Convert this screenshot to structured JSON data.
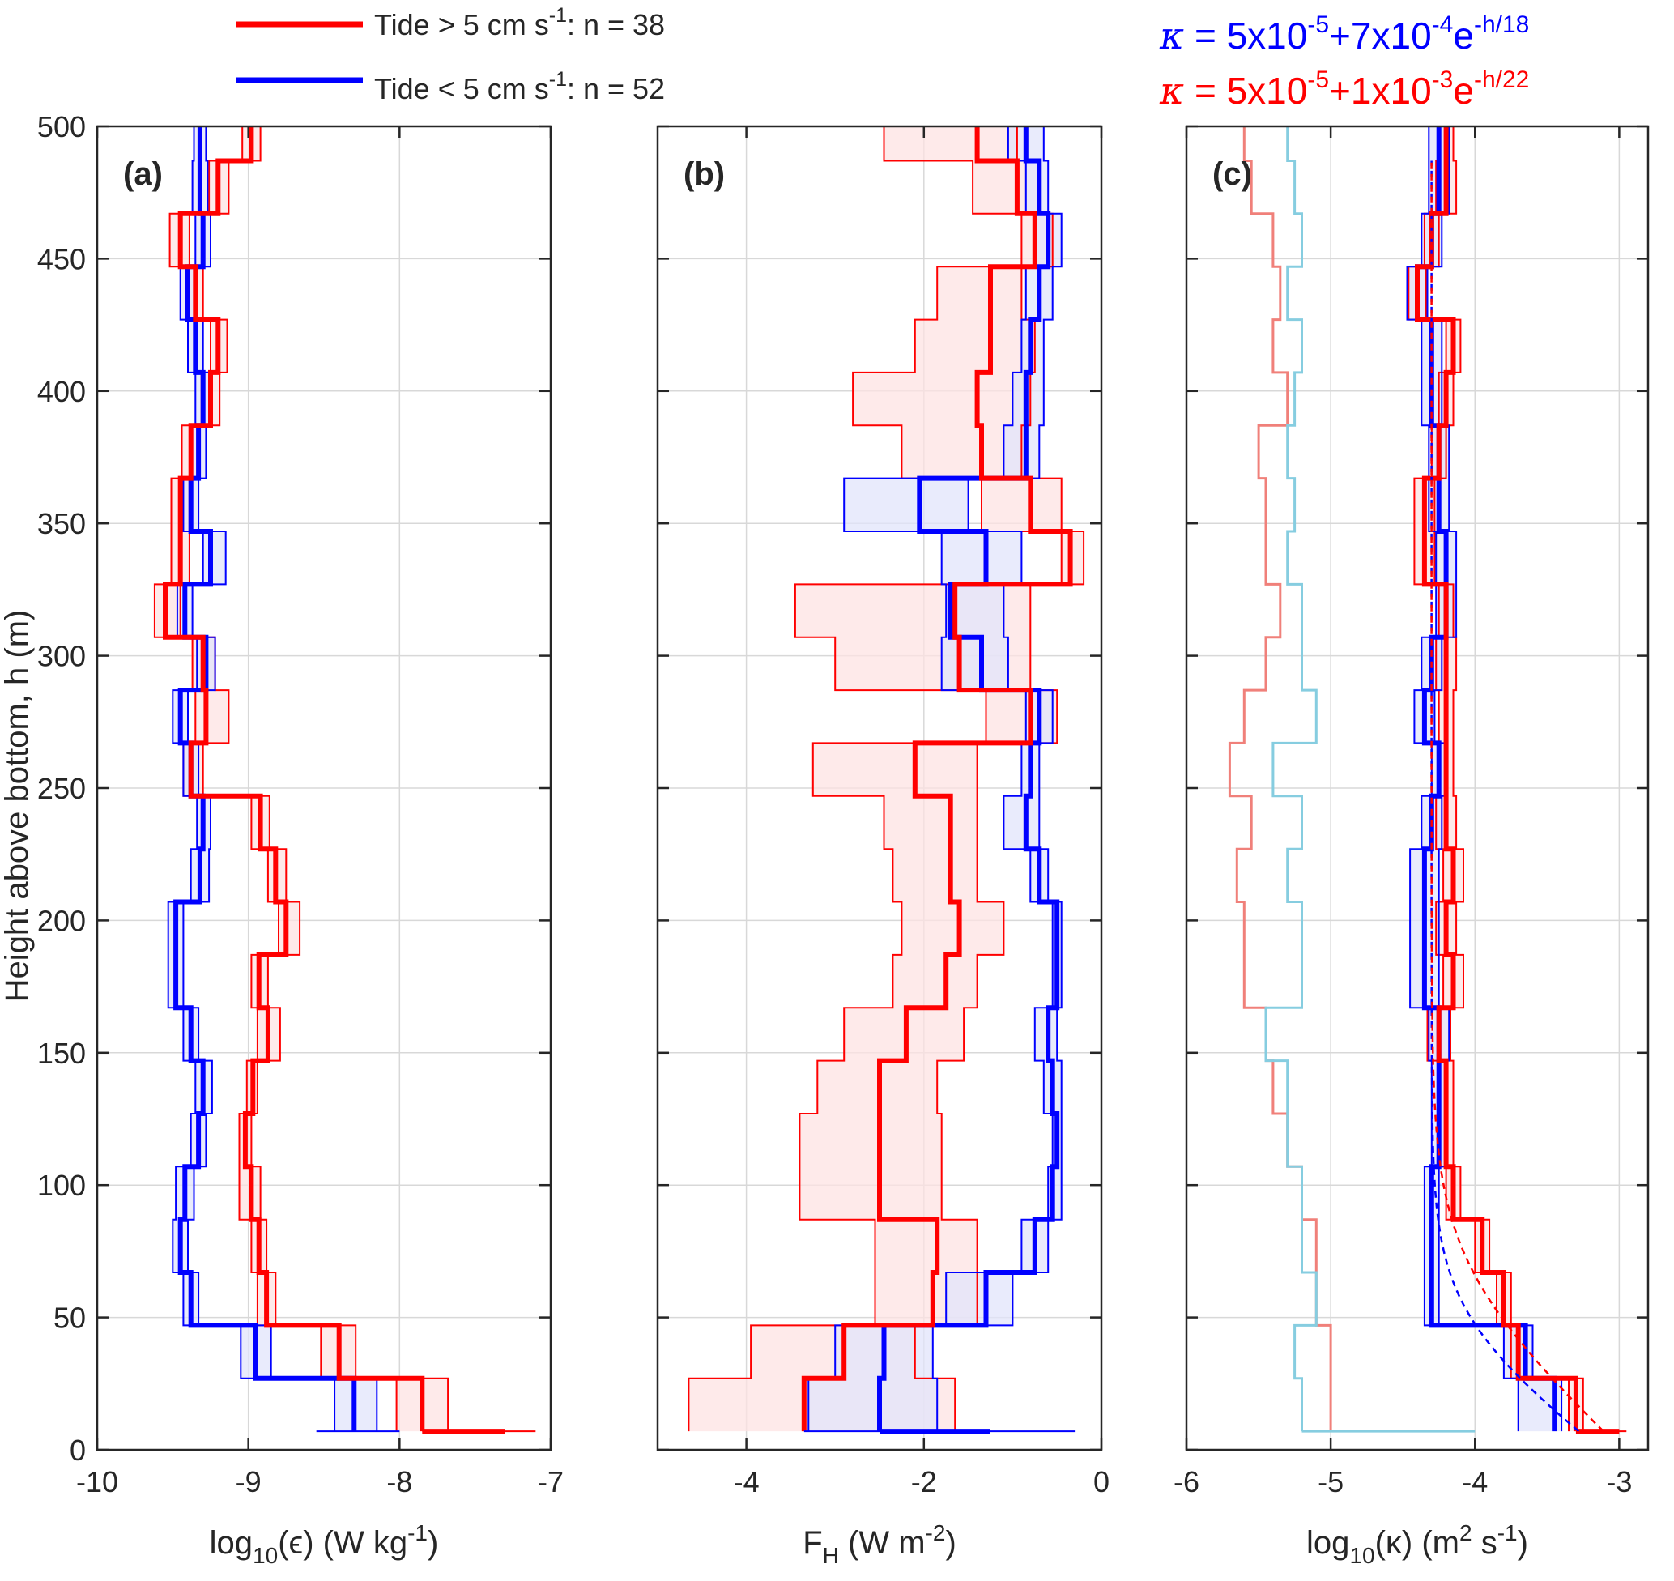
{
  "figure": {
    "legend": [
      {
        "label_pre": "Tide > 5 cm s",
        "sup": "-1",
        "label_post": ": n = 38",
        "color": "#ff0000"
      },
      {
        "label_pre": "Tide < 5 cm s",
        "sup": "-1",
        "label_post": ": n = 52",
        "color": "#0000ff"
      }
    ],
    "fits": [
      {
        "kappa": "κ",
        "pre": " = 5x10",
        "s1": "-5",
        "mid": "+7x10",
        "s2": "-4",
        "e": "e",
        "s3": "-h/18",
        "color": "#0000ff"
      },
      {
        "kappa": "κ",
        "pre": " = 5x10",
        "s1": "-5",
        "mid": "+1x10",
        "s2": "-3",
        "e": "e",
        "s3": "-h/22",
        "color": "#ff0000"
      }
    ],
    "ylabel": "Height above bottom, h (m)",
    "colors": {
      "red": "#ff0000",
      "blue": "#0000ff",
      "light_red": "#f0807a",
      "light_blue": "#86cde0",
      "fill_red": "#fde3e3",
      "fill_blue": "#e2e4fb"
    }
  },
  "chart_data": [
    {
      "type": "line",
      "panel_label": "(a)",
      "xlabel_main": "log",
      "xlabel_sub": "10",
      "xlabel_rest": "(ϵ) (W kg",
      "xlabel_sup": "-1",
      "xlabel_end": ")",
      "xlim": [
        -10,
        -7
      ],
      "ylim": [
        0,
        500
      ],
      "xticks": [
        -10,
        -9,
        -8,
        -7
      ],
      "xtick_labels": [
        "-10",
        "-9",
        "-8",
        "-7"
      ],
      "yticks": [
        0,
        50,
        100,
        150,
        200,
        250,
        300,
        350,
        400,
        450,
        500
      ],
      "ytick_labels": [
        "0",
        "50",
        "100",
        "150",
        "200",
        "250",
        "300",
        "350",
        "400",
        "450",
        "500"
      ],
      "bin_edges": [
        7,
        27,
        47,
        67,
        87,
        107,
        127,
        147,
        167,
        187,
        207,
        227,
        247,
        267,
        287,
        307,
        327,
        347,
        367,
        387,
        407,
        427,
        447,
        467,
        487
      ],
      "series": [
        {
          "name": "Tide > 5 cm s-1",
          "mean": [
            -7.85,
            -8.4,
            -8.88,
            -8.93,
            -8.98,
            -9.02,
            -8.97,
            -8.87,
            -8.93,
            -8.75,
            -8.82,
            -8.92,
            -9.38,
            -9.28,
            -9.3,
            -9.55,
            -9.45,
            -9.45,
            -9.38,
            -9.25,
            -9.2,
            -9.35,
            -9.45,
            -9.2,
            -8.98
          ],
          "lo": [
            -8.02,
            -8.52,
            -8.94,
            -8.98,
            -9.06,
            -9.06,
            -9.01,
            -8.94,
            -8.98,
            -8.8,
            -8.87,
            -8.98,
            -9.43,
            -9.35,
            -9.37,
            -9.62,
            -9.51,
            -9.51,
            -9.44,
            -9.31,
            -9.25,
            -9.4,
            -9.52,
            -9.26,
            -9.04
          ],
          "hi": [
            -7.68,
            -8.29,
            -8.82,
            -8.88,
            -8.92,
            -8.98,
            -8.94,
            -8.79,
            -8.87,
            -8.66,
            -8.75,
            -8.86,
            -9.3,
            -9.13,
            -9.22,
            -9.45,
            -9.39,
            -9.39,
            -9.33,
            -9.19,
            -9.14,
            -9.3,
            -9.39,
            -9.13,
            -8.92
          ],
          "spike": {
            "h": 7,
            "value": -7.3,
            "lo": -7.85,
            "hi": -7.1
          }
        },
        {
          "name": "Tide < 5 cm s-1",
          "mean": [
            -8.3,
            -8.95,
            -9.38,
            -9.45,
            -9.42,
            -9.33,
            -9.3,
            -9.38,
            -9.48,
            -9.48,
            -9.32,
            -9.3,
            -9.38,
            -9.45,
            -9.28,
            -9.42,
            -9.25,
            -9.38,
            -9.33,
            -9.3,
            -9.35,
            -9.4,
            -9.3,
            -9.32,
            -9.32
          ],
          "lo": [
            -8.43,
            -9.05,
            -9.43,
            -9.5,
            -9.48,
            -9.38,
            -9.35,
            -9.43,
            -9.53,
            -9.53,
            -9.38,
            -9.34,
            -9.43,
            -9.5,
            -9.34,
            -9.47,
            -9.3,
            -9.43,
            -9.38,
            -9.35,
            -9.4,
            -9.45,
            -9.35,
            -9.37,
            -9.36
          ],
          "hi": [
            -8.15,
            -8.85,
            -9.33,
            -9.4,
            -9.36,
            -9.28,
            -9.24,
            -9.33,
            -9.43,
            -9.43,
            -9.26,
            -9.25,
            -9.33,
            -9.4,
            -9.22,
            -9.37,
            -9.15,
            -9.33,
            -9.28,
            -9.25,
            -9.3,
            -9.35,
            -9.25,
            -9.27,
            -9.28
          ],
          "spike": {
            "h": 7,
            "value": -8.3,
            "lo": -8.55,
            "hi": -8.0
          }
        }
      ]
    },
    {
      "type": "line",
      "panel_label": "(b)",
      "xlabel_main": "F",
      "xlabel_sub": "H",
      "xlabel_rest": " (W m",
      "xlabel_sup": "-2",
      "xlabel_end": ")",
      "xlim": [
        -5,
        0
      ],
      "ylim": [
        0,
        500
      ],
      "xticks": [
        -4,
        -2,
        0
      ],
      "xtick_labels": [
        "-4",
        "-2",
        "0"
      ],
      "yticks": [
        0,
        50,
        100,
        150,
        200,
        250,
        300,
        350,
        400,
        450,
        500
      ],
      "ytick_labels": [],
      "bin_edges": [
        7,
        27,
        47,
        67,
        87,
        107,
        127,
        147,
        167,
        187,
        207,
        227,
        247,
        267,
        287,
        307,
        327,
        347,
        367,
        387,
        407,
        427,
        447,
        467,
        487
      ],
      "series": [
        {
          "name": "Tide > 5 cm s-1",
          "mean": [
            -3.35,
            -2.9,
            -1.9,
            -1.85,
            -2.5,
            -2.5,
            -2.5,
            -2.2,
            -1.75,
            -1.6,
            -1.7,
            -1.7,
            -2.1,
            -0.8,
            -1.6,
            -1.65,
            -0.35,
            -0.8,
            -1.35,
            -1.4,
            -1.25,
            -1.25,
            -0.75,
            -0.95,
            -1.4
          ],
          "lo": [
            -4.65,
            -3.95,
            -2.55,
            -2.55,
            -3.4,
            -3.4,
            -3.2,
            -2.9,
            -2.35,
            -2.25,
            -2.35,
            -2.45,
            -3.25,
            -1.3,
            -3.0,
            -3.45,
            -0.45,
            -1.35,
            -2.25,
            -2.8,
            -2.1,
            -1.85,
            -0.9,
            -1.45,
            -2.45
          ],
          "hi": [
            -1.65,
            -2.1,
            -1.4,
            -1.4,
            -1.8,
            -1.8,
            -1.85,
            -1.55,
            -1.4,
            -1.1,
            -1.4,
            -1.4,
            -1.4,
            -0.5,
            -0.8,
            -0.8,
            -0.2,
            -0.45,
            -0.9,
            -0.8,
            -0.75,
            -0.9,
            -0.55,
            -0.7,
            -0.95
          ]
        },
        {
          "name": "Tide < 5 cm s-1",
          "mean": [
            -2.5,
            -2.45,
            -1.3,
            -0.75,
            -0.55,
            -0.5,
            -0.55,
            -0.6,
            -0.5,
            -0.5,
            -0.7,
            -0.85,
            -0.8,
            -0.7,
            -1.35,
            -1.7,
            -1.3,
            -2.05,
            -0.85,
            -0.85,
            -0.8,
            -0.7,
            -0.6,
            -0.7,
            -0.85
          ],
          "lo": [
            -3.3,
            -3.0,
            -1.75,
            -0.9,
            -0.6,
            -0.55,
            -0.65,
            -0.75,
            -0.55,
            -0.55,
            -0.8,
            -1.1,
            -0.9,
            -0.85,
            -1.8,
            -1.75,
            -1.8,
            -2.9,
            -1.1,
            -1.0,
            -0.9,
            -0.85,
            -0.75,
            -0.85,
            -1.05
          ],
          "hi": [
            -1.85,
            -1.9,
            -1.0,
            -0.6,
            -0.45,
            -0.45,
            -0.45,
            -0.5,
            -0.45,
            -0.45,
            -0.6,
            -0.7,
            -0.7,
            -0.55,
            -1.05,
            -1.1,
            -0.9,
            -1.5,
            -0.7,
            -0.65,
            -0.65,
            -0.55,
            -0.45,
            -0.6,
            -0.65
          ],
          "spike": {
            "h": 7,
            "value": -1.25,
            "lo": -3.35,
            "hi": -0.3
          }
        }
      ]
    },
    {
      "type": "line",
      "panel_label": "(c)",
      "xlabel_main": "log",
      "xlabel_sub": "10",
      "xlabel_rest": "(κ) (m",
      "xlabel_sup": "2",
      "xlabel_end": " s",
      "xlabel_sup2": "-1",
      "xlabel_end2": ")",
      "xlim": [
        -6,
        -2.8
      ],
      "ylim": [
        0,
        500
      ],
      "xticks": [
        -6,
        -5,
        -4,
        -3
      ],
      "xtick_labels": [
        "-6",
        "-5",
        "-4",
        "-3"
      ],
      "yticks": [
        0,
        50,
        100,
        150,
        200,
        250,
        300,
        350,
        400,
        450,
        500
      ],
      "ytick_labels": [],
      "bin_edges": [
        7,
        27,
        47,
        67,
        87,
        107,
        127,
        147,
        167,
        187,
        207,
        227,
        247,
        267,
        287,
        307,
        327,
        347,
        367,
        387,
        407,
        427,
        447,
        467,
        487
      ],
      "series": [
        {
          "name": "Tide > 5 cm s-1",
          "mean": [
            -3.3,
            -3.7,
            -3.8,
            -3.95,
            -4.15,
            -4.2,
            -4.2,
            -4.25,
            -4.15,
            -4.2,
            -4.15,
            -4.2,
            -4.2,
            -4.2,
            -4.2,
            -4.2,
            -4.35,
            -4.35,
            -4.25,
            -4.2,
            -4.15,
            -4.4,
            -4.3,
            -4.2,
            -4.2
          ],
          "lo": [
            -3.35,
            -3.75,
            -3.85,
            -4.0,
            -4.2,
            -4.25,
            -4.25,
            -4.33,
            -4.22,
            -4.27,
            -4.22,
            -4.27,
            -4.25,
            -4.25,
            -4.27,
            -4.25,
            -4.42,
            -4.42,
            -4.3,
            -4.25,
            -4.2,
            -4.46,
            -4.35,
            -4.27,
            -4.25
          ],
          "hi": [
            -3.25,
            -3.65,
            -3.75,
            -3.9,
            -4.1,
            -4.15,
            -4.15,
            -4.17,
            -4.08,
            -4.13,
            -4.08,
            -4.13,
            -4.15,
            -4.15,
            -4.13,
            -4.15,
            -4.28,
            -4.28,
            -4.2,
            -4.15,
            -4.1,
            -4.34,
            -4.25,
            -4.13,
            -4.15
          ],
          "spike": {
            "h": 7,
            "value": -3.0,
            "lo": -3.3,
            "hi": -2.95
          }
        },
        {
          "name": "Tide < 5 cm s-1",
          "mean": [
            -3.45,
            -3.65,
            -4.3,
            -4.3,
            -4.3,
            -4.25,
            -4.25,
            -4.25,
            -4.35,
            -4.35,
            -4.35,
            -4.3,
            -4.25,
            -4.35,
            -4.3,
            -4.2,
            -4.2,
            -4.25,
            -4.25,
            -4.3,
            -4.3,
            -4.4,
            -4.3,
            -4.25,
            -4.25
          ],
          "lo": [
            -3.7,
            -3.8,
            -4.35,
            -4.35,
            -4.35,
            -4.3,
            -4.3,
            -4.32,
            -4.45,
            -4.45,
            -4.45,
            -4.37,
            -4.3,
            -4.42,
            -4.37,
            -4.27,
            -4.27,
            -4.32,
            -4.32,
            -4.37,
            -4.37,
            -4.47,
            -4.37,
            -4.32,
            -4.32
          ],
          "hi": [
            -3.4,
            -3.6,
            -4.25,
            -4.25,
            -4.25,
            -4.2,
            -4.2,
            -4.18,
            -4.25,
            -4.25,
            -4.25,
            -4.23,
            -4.2,
            -4.28,
            -4.23,
            -4.13,
            -4.13,
            -4.18,
            -4.18,
            -4.23,
            -4.23,
            -4.33,
            -4.23,
            -4.18,
            -4.18
          ]
        },
        {
          "name": "Tide > 5 cm s-1 (light)",
          "values": [
            -5.0,
            -5.0,
            -5.1,
            -5.1,
            -5.2,
            -5.3,
            -5.4,
            -5.45,
            -5.6,
            -5.6,
            -5.65,
            -5.55,
            -5.7,
            -5.6,
            -5.45,
            -5.35,
            -5.45,
            -5.45,
            -5.5,
            -5.3,
            -5.4,
            -5.35,
            -5.4,
            -5.55,
            -5.6
          ]
        },
        {
          "name": "Tide < 5 cm s-1 (light)",
          "values": [
            -5.2,
            -5.25,
            -5.1,
            -5.2,
            -5.2,
            -5.3,
            -5.3,
            -5.45,
            -5.2,
            -5.2,
            -5.3,
            -5.2,
            -5.4,
            -5.1,
            -5.2,
            -5.2,
            -5.3,
            -5.25,
            -5.3,
            -5.25,
            -5.2,
            -5.3,
            -5.2,
            -5.25,
            -5.3
          ],
          "spike": {
            "h": 7,
            "value": -5.2,
            "end": -4.0
          }
        },
        {
          "name": "Fit blue",
          "style": "dashed",
          "a": 5e-05,
          "b": 0.0007,
          "scale": 18
        },
        {
          "name": "Fit red",
          "style": "dashed",
          "a": 5e-05,
          "b": 0.001,
          "scale": 22
        }
      ]
    }
  ]
}
